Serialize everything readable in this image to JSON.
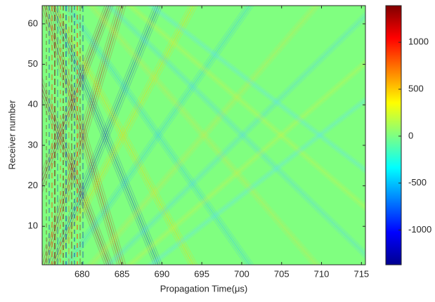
{
  "chart_data": {
    "type": "heatmap",
    "xlabel": "Propagation Time(μs)",
    "ylabel": "Receiver number",
    "xlim": [
      675,
      715.5
    ],
    "xticks": [
      680,
      685,
      690,
      695,
      700,
      705,
      710,
      715
    ],
    "ylim": [
      0.5,
      64.5
    ],
    "yticks": [
      10,
      20,
      30,
      40,
      50,
      60
    ],
    "colorbar": {
      "colormap": "jet",
      "clim": [
        -1370,
        1390
      ],
      "ticks": [
        -1000,
        -500,
        0,
        500,
        1000
      ]
    }
  }
}
